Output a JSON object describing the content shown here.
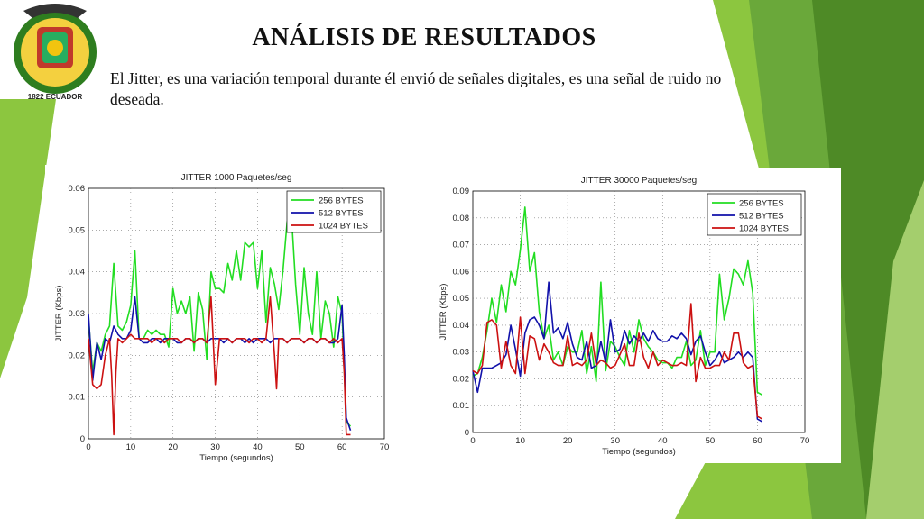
{
  "slide": {
    "title": "ANÁLISIS DE RESULTADOS",
    "text": "El Jitter, es una variación temporal durante él envió de señales digitales, es una señal de ruido no deseada.",
    "logo_text": "1822 ECUADOR"
  },
  "colors": {
    "accent_green": "#8cc63f",
    "dark_green": "#4e8a26",
    "s256": "#22dd22",
    "s512": "#1111aa",
    "s1024": "#cc1111"
  },
  "chart_data": [
    {
      "type": "line",
      "title": "JITTER   1000 Paquetes/seg",
      "xlabel": "Tiempo (segundos)",
      "ylabel": "JITTER (Kbps)",
      "xlim": [
        0,
        70
      ],
      "ylim": [
        0,
        0.06
      ],
      "xticks": [
        "0",
        "10",
        "20",
        "30",
        "40",
        "50",
        "60",
        "70"
      ],
      "yticks": [
        "0",
        "0.01",
        "0.02",
        "0.03",
        "0.04",
        "0.05",
        "0.06"
      ],
      "grid": true,
      "legend": "top-right",
      "series": [
        {
          "name": "256 BYTES",
          "color": "#22dd22",
          "x": [
            0,
            1,
            2,
            3,
            4,
            5,
            6,
            7,
            8,
            9,
            10,
            11,
            12,
            13,
            14,
            15,
            16,
            17,
            18,
            19,
            20,
            21,
            22,
            23,
            24,
            25,
            26,
            27,
            28,
            29,
            30,
            31,
            32,
            33,
            34,
            35,
            36,
            37,
            38,
            39,
            40,
            41,
            42,
            43,
            44,
            45,
            46,
            47,
            48,
            49,
            50,
            51,
            52,
            53,
            54,
            55,
            56,
            57,
            58,
            59,
            60,
            61,
            62
          ],
          "y": [
            0.029,
            0.016,
            0.023,
            0.021,
            0.025,
            0.027,
            0.042,
            0.027,
            0.026,
            0.028,
            0.032,
            0.045,
            0.024,
            0.024,
            0.026,
            0.025,
            0.026,
            0.025,
            0.025,
            0.022,
            0.036,
            0.03,
            0.033,
            0.03,
            0.034,
            0.021,
            0.035,
            0.031,
            0.019,
            0.04,
            0.036,
            0.036,
            0.035,
            0.042,
            0.038,
            0.045,
            0.038,
            0.047,
            0.046,
            0.047,
            0.036,
            0.045,
            0.028,
            0.041,
            0.037,
            0.031,
            0.04,
            0.052,
            0.054,
            0.037,
            0.025,
            0.041,
            0.03,
            0.025,
            0.04,
            0.024,
            0.033,
            0.03,
            0.022,
            0.034,
            0.03,
            0.004,
            0.003
          ]
        },
        {
          "name": "512 BYTES",
          "color": "#1111aa",
          "x": [
            0,
            1,
            2,
            3,
            4,
            5,
            6,
            7,
            8,
            9,
            10,
            11,
            12,
            13,
            14,
            15,
            16,
            17,
            18,
            19,
            20,
            21,
            22,
            23,
            24,
            25,
            26,
            27,
            28,
            29,
            30,
            31,
            32,
            33,
            34,
            35,
            36,
            37,
            38,
            39,
            40,
            41,
            42,
            43,
            44,
            45,
            46,
            47,
            48,
            49,
            50,
            51,
            52,
            53,
            54,
            55,
            56,
            57,
            58,
            59,
            59.5,
            60,
            60.5,
            61,
            62
          ],
          "y": [
            0.03,
            0.014,
            0.023,
            0.019,
            0.024,
            0.023,
            0.027,
            0.025,
            0.024,
            0.024,
            0.026,
            0.034,
            0.024,
            0.023,
            0.023,
            0.024,
            0.024,
            0.023,
            0.024,
            0.024,
            0.024,
            0.023,
            0.023,
            0.024,
            0.024,
            0.023,
            0.024,
            0.024,
            0.023,
            0.024,
            0.024,
            0.024,
            0.023,
            0.024,
            0.023,
            0.024,
            0.024,
            0.023,
            0.024,
            0.023,
            0.024,
            0.024,
            0.024,
            0.023,
            0.024,
            0.024,
            0.024,
            0.023,
            0.024,
            0.024,
            0.024,
            0.023,
            0.024,
            0.024,
            0.023,
            0.024,
            0.024,
            0.023,
            0.023,
            0.024,
            0.028,
            0.032,
            0.02,
            0.005,
            0.002
          ]
        },
        {
          "name": "1024 BYTES",
          "color": "#cc1111",
          "x": [
            0,
            1,
            2,
            3,
            4,
            5,
            5.5,
            6,
            6.5,
            7,
            8,
            9,
            10,
            11,
            12,
            13,
            14,
            15,
            16,
            17,
            18,
            19,
            20,
            21,
            22,
            23,
            24,
            25,
            26,
            27,
            28,
            29,
            29.5,
            30,
            31,
            32,
            33,
            34,
            35,
            36,
            37,
            38,
            39,
            40,
            41,
            42,
            43,
            44,
            44.5,
            45,
            46,
            47,
            48,
            49,
            50,
            51,
            52,
            53,
            54,
            55,
            56,
            57,
            58,
            59,
            60,
            60.5,
            61,
            62
          ],
          "y": [
            0.024,
            0.013,
            0.012,
            0.013,
            0.02,
            0.024,
            0.015,
            0.001,
            0.016,
            0.024,
            0.023,
            0.024,
            0.025,
            0.024,
            0.024,
            0.024,
            0.024,
            0.023,
            0.024,
            0.024,
            0.023,
            0.024,
            0.024,
            0.024,
            0.023,
            0.024,
            0.024,
            0.023,
            0.024,
            0.024,
            0.023,
            0.034,
            0.024,
            0.013,
            0.024,
            0.024,
            0.024,
            0.023,
            0.024,
            0.024,
            0.024,
            0.023,
            0.024,
            0.024,
            0.023,
            0.024,
            0.034,
            0.02,
            0.012,
            0.024,
            0.024,
            0.023,
            0.024,
            0.024,
            0.024,
            0.023,
            0.024,
            0.024,
            0.023,
            0.024,
            0.024,
            0.023,
            0.024,
            0.023,
            0.024,
            0.016,
            0.001,
            0.001
          ]
        }
      ]
    },
    {
      "type": "line",
      "title": "JITTER   30000 Paquetes/seg",
      "xlabel": "Tiempo (segundos)",
      "ylabel": "JITTER (Kbps)",
      "xlim": [
        0,
        70
      ],
      "ylim": [
        0,
        0.09
      ],
      "xticks": [
        "0",
        "10",
        "20",
        "30",
        "40",
        "50",
        "60",
        "70"
      ],
      "yticks": [
        "0",
        "0.01",
        "0.02",
        "0.03",
        "0.04",
        "0.05",
        "0.06",
        "0.07",
        "0.08",
        "0.09"
      ],
      "grid": true,
      "legend": "top-right",
      "series": [
        {
          "name": "256 BYTES",
          "color": "#22dd22",
          "x": [
            0,
            1,
            2,
            3,
            4,
            5,
            6,
            7,
            8,
            9,
            10,
            11,
            12,
            13,
            14,
            15,
            16,
            17,
            18,
            19,
            20,
            21,
            22,
            23,
            24,
            25,
            26,
            27,
            28,
            29,
            30,
            31,
            32,
            33,
            34,
            35,
            36,
            37,
            38,
            39,
            40,
            41,
            42,
            43,
            44,
            45,
            46,
            47,
            48,
            49,
            50,
            51,
            52,
            53,
            54,
            55,
            56,
            57,
            58,
            59,
            60,
            61
          ],
          "y": [
            0.021,
            0.022,
            0.028,
            0.038,
            0.05,
            0.041,
            0.055,
            0.045,
            0.06,
            0.055,
            0.068,
            0.084,
            0.06,
            0.067,
            0.045,
            0.035,
            0.04,
            0.027,
            0.03,
            0.025,
            0.032,
            0.03,
            0.03,
            0.038,
            0.022,
            0.032,
            0.019,
            0.056,
            0.023,
            0.034,
            0.032,
            0.028,
            0.025,
            0.038,
            0.03,
            0.042,
            0.035,
            0.032,
            0.03,
            0.027,
            0.026,
            0.026,
            0.024,
            0.028,
            0.028,
            0.034,
            0.025,
            0.027,
            0.038,
            0.025,
            0.03,
            0.03,
            0.059,
            0.042,
            0.05,
            0.061,
            0.059,
            0.055,
            0.064,
            0.052,
            0.015,
            0.014
          ]
        },
        {
          "name": "512 BYTES",
          "color": "#1111aa",
          "x": [
            0,
            1,
            2,
            3,
            4,
            5,
            6,
            7,
            8,
            9,
            10,
            11,
            12,
            13,
            14,
            15,
            16,
            17,
            18,
            19,
            20,
            21,
            22,
            23,
            24,
            25,
            26,
            27,
            28,
            29,
            30,
            31,
            32,
            33,
            34,
            35,
            36,
            37,
            38,
            39,
            40,
            41,
            42,
            43,
            44,
            45,
            46,
            47,
            48,
            49,
            50,
            51,
            52,
            53,
            54,
            55,
            56,
            57,
            58,
            59,
            60,
            61
          ],
          "y": [
            0.023,
            0.015,
            0.024,
            0.024,
            0.024,
            0.025,
            0.026,
            0.029,
            0.04,
            0.031,
            0.021,
            0.037,
            0.042,
            0.043,
            0.04,
            0.035,
            0.056,
            0.037,
            0.039,
            0.035,
            0.041,
            0.033,
            0.028,
            0.027,
            0.034,
            0.024,
            0.025,
            0.034,
            0.026,
            0.042,
            0.03,
            0.031,
            0.038,
            0.033,
            0.036,
            0.034,
            0.037,
            0.034,
            0.038,
            0.035,
            0.034,
            0.034,
            0.036,
            0.035,
            0.037,
            0.035,
            0.029,
            0.034,
            0.036,
            0.03,
            0.025,
            0.027,
            0.03,
            0.026,
            0.027,
            0.028,
            0.03,
            0.028,
            0.03,
            0.028,
            0.005,
            0.004
          ]
        },
        {
          "name": "1024 BYTES",
          "color": "#cc1111",
          "x": [
            0,
            1,
            2,
            3,
            4,
            5,
            6,
            7,
            8,
            9,
            10,
            11,
            12,
            13,
            14,
            15,
            16,
            17,
            18,
            19,
            20,
            21,
            22,
            23,
            24,
            25,
            26,
            27,
            28,
            29,
            30,
            31,
            32,
            33,
            34,
            35,
            36,
            37,
            38,
            39,
            40,
            41,
            42,
            43,
            44,
            45,
            46,
            47,
            48,
            49,
            50,
            51,
            52,
            53,
            54,
            55,
            56,
            57,
            58,
            59,
            60,
            61
          ],
          "y": [
            0.023,
            0.022,
            0.025,
            0.041,
            0.042,
            0.04,
            0.024,
            0.034,
            0.025,
            0.022,
            0.043,
            0.022,
            0.036,
            0.035,
            0.027,
            0.033,
            0.03,
            0.026,
            0.025,
            0.025,
            0.036,
            0.025,
            0.026,
            0.025,
            0.027,
            0.037,
            0.025,
            0.027,
            0.026,
            0.024,
            0.025,
            0.029,
            0.033,
            0.025,
            0.025,
            0.037,
            0.028,
            0.024,
            0.03,
            0.025,
            0.027,
            0.026,
            0.025,
            0.025,
            0.026,
            0.025,
            0.048,
            0.019,
            0.028,
            0.024,
            0.024,
            0.025,
            0.025,
            0.03,
            0.027,
            0.037,
            0.037,
            0.026,
            0.024,
            0.025,
            0.006,
            0.005
          ]
        }
      ]
    }
  ]
}
